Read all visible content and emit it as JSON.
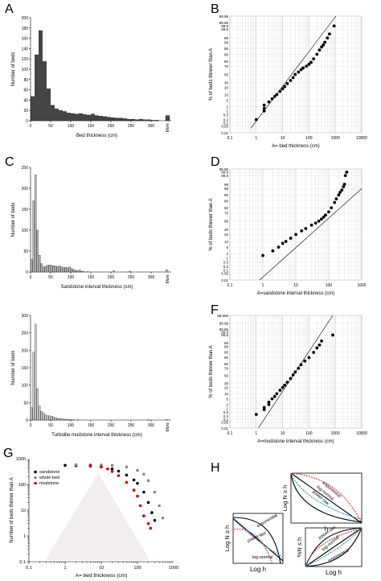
{
  "chart_data": [
    {
      "panel": "A",
      "type": "bar",
      "xlabel": "Bed thickness (cm)",
      "ylabel": "Number of beds",
      "ylim": [
        0,
        200
      ],
      "yticks": [
        0,
        20,
        40,
        60,
        80,
        100,
        120,
        140,
        160,
        180,
        200
      ],
      "xlim": [
        0,
        330
      ],
      "xticks": [
        0,
        50,
        100,
        150,
        200,
        250,
        300
      ],
      "bin_width": 10,
      "more_label": "More",
      "more_value": 10,
      "bar_color": "#444444",
      "values": [
        47,
        128,
        175,
        115,
        62,
        30,
        23,
        20,
        18,
        15,
        14,
        13,
        14,
        12,
        11,
        13,
        10,
        9,
        8,
        7,
        6,
        5,
        5,
        4,
        3,
        3,
        2,
        3,
        2,
        2,
        1,
        1
      ]
    },
    {
      "panel": "B",
      "type": "scatter",
      "xlabel": "A= bed thickness (cm)",
      "ylabel": "% of beds thinner than A",
      "xscale": "log",
      "xlim": [
        0.1,
        10000
      ],
      "xticks": [
        "0.1",
        "1",
        "10",
        "100",
        "1000",
        "10000"
      ],
      "yticks": [
        "0.01",
        "0.05",
        "0.1",
        "0.2",
        "0.5",
        "1",
        "2",
        "5",
        "10",
        "20",
        "30",
        "50",
        "70",
        "80",
        "90",
        "95",
        "98",
        "99",
        "99.8",
        "99.9",
        "99.95",
        "99.99"
      ],
      "fit_line": [
        [
          0.62,
          0.03
        ],
        [
          1050,
          99.99
        ]
      ],
      "points": [
        [
          1,
          0.2
        ],
        [
          2,
          1
        ],
        [
          2,
          1.5
        ],
        [
          2,
          2.5
        ],
        [
          3,
          4
        ],
        [
          4,
          6
        ],
        [
          5,
          8
        ],
        [
          6,
          10
        ],
        [
          8,
          14
        ],
        [
          10,
          18
        ],
        [
          12,
          22
        ],
        [
          15,
          28
        ],
        [
          20,
          35
        ],
        [
          25,
          42
        ],
        [
          30,
          50
        ],
        [
          40,
          56
        ],
        [
          50,
          62
        ],
        [
          60,
          66
        ],
        [
          80,
          70
        ],
        [
          100,
          74
        ],
        [
          120,
          78
        ],
        [
          150,
          84
        ],
        [
          200,
          90
        ],
        [
          250,
          94
        ],
        [
          300,
          96
        ],
        [
          350,
          97
        ],
        [
          400,
          98
        ],
        [
          500,
          99
        ],
        [
          600,
          99.5
        ],
        [
          900,
          99.9
        ]
      ]
    },
    {
      "panel": "C",
      "type": "bar",
      "xlabel": "Sandstone interval thickness (cm)",
      "ylabel": "Number of beds",
      "ylim": [
        0,
        250
      ],
      "yticks": [
        0,
        50,
        100,
        150,
        200,
        250
      ],
      "xlim": [
        0,
        330
      ],
      "xticks": [
        0,
        50,
        100,
        150,
        200,
        250,
        300
      ],
      "bin_width": 5,
      "more_label": "More",
      "more_value": 5,
      "bar_color": "#bdbdbd",
      "values": [
        30,
        170,
        232,
        100,
        40,
        20,
        12,
        14,
        16,
        17,
        16,
        15,
        14,
        13,
        14,
        12,
        10,
        11,
        10,
        12,
        8,
        6,
        4,
        3,
        5,
        2,
        1,
        0,
        1,
        0,
        0,
        0,
        0,
        0,
        0,
        0,
        0,
        0,
        0,
        0,
        0,
        3,
        0,
        0,
        0,
        0,
        0,
        0,
        0,
        2,
        0,
        0,
        0,
        0,
        0,
        0,
        0,
        0,
        0,
        0,
        0,
        0,
        0,
        0,
        0,
        0
      ]
    },
    {
      "panel": "D",
      "type": "scatter",
      "xlabel": "A=sandstone interval thickness (cm)",
      "ylabel": "% of beds thinner than A",
      "xscale": "log",
      "xlim": [
        0.1,
        1000
      ],
      "xticks": [
        "0.1",
        "1",
        "10",
        "100",
        "1000"
      ],
      "yticks": [
        "0.01",
        "0.05",
        "0.1",
        "0.2",
        "0.5",
        "1",
        "2",
        "5",
        "10",
        "20",
        "30",
        "50",
        "70",
        "80",
        "90",
        "95",
        "98",
        "99",
        "99.8",
        "99.9",
        "99.95"
      ],
      "fit_line": [
        [
          0.8,
          0.01
        ],
        [
          1000,
          98
        ]
      ],
      "points": [
        [
          1,
          1.5
        ],
        [
          2,
          3
        ],
        [
          3,
          5
        ],
        [
          4,
          8
        ],
        [
          5,
          10
        ],
        [
          7,
          14
        ],
        [
          10,
          20
        ],
        [
          15,
          27
        ],
        [
          20,
          32
        ],
        [
          30,
          40
        ],
        [
          40,
          45
        ],
        [
          50,
          50
        ],
        [
          60,
          55
        ],
        [
          70,
          60
        ],
        [
          80,
          65
        ],
        [
          100,
          72
        ],
        [
          120,
          80
        ],
        [
          150,
          88
        ],
        [
          170,
          92
        ],
        [
          200,
          95
        ],
        [
          220,
          96.5
        ],
        [
          250,
          97.5
        ],
        [
          280,
          98.5
        ],
        [
          300,
          99
        ],
        [
          320,
          99.8
        ],
        [
          350,
          99.9
        ]
      ]
    },
    {
      "panel": "E",
      "type": "bar",
      "xlabel": "Turbidite mudstone interval thickness (cm)",
      "ylabel": "Number of beds",
      "ylim": [
        0,
        300
      ],
      "yticks": [
        0,
        50,
        100,
        150,
        200,
        250,
        300
      ],
      "xlim": [
        0,
        330
      ],
      "xticks": [
        0,
        50,
        100,
        150,
        200,
        250,
        300
      ],
      "bin_width": 5,
      "more_label": "More",
      "more_value": 2,
      "bar_color": "#d4d4d4",
      "values": [
        35,
        195,
        275,
        90,
        40,
        25,
        20,
        15,
        12,
        12,
        11,
        9,
        6,
        5,
        4,
        3,
        3,
        2,
        2,
        1,
        1,
        1,
        0,
        1,
        0,
        0,
        0,
        0,
        0,
        0,
        0,
        0,
        0,
        0,
        0,
        0,
        0,
        0,
        0,
        0,
        0,
        0,
        0,
        0,
        0,
        0,
        0,
        0,
        0,
        0,
        0,
        0,
        0,
        0,
        0,
        0,
        0,
        0,
        1,
        0,
        0,
        0,
        0,
        0,
        0,
        0
      ]
    },
    {
      "panel": "F",
      "type": "scatter",
      "xlabel": "A=mudstone interval thickness (cm)",
      "ylabel": "% of beds thinner than A",
      "xscale": "log",
      "xlim": [
        0.1,
        10000
      ],
      "xticks": [
        "0.1",
        "1",
        "10",
        "100",
        "1000",
        "10000"
      ],
      "yticks": [
        "0.01",
        "0.05",
        "0.1",
        "0.2",
        "0.5",
        "1",
        "2",
        "5",
        "10",
        "20",
        "30",
        "50",
        "70",
        "80",
        "90",
        "95",
        "98",
        "99",
        "99.8",
        "99.9",
        "99.95",
        "99.99",
        "99.999"
      ],
      "fit_line": [
        [
          1.2,
          0.01
        ],
        [
          800,
          99.999
        ]
      ],
      "points": [
        [
          1,
          0.3
        ],
        [
          2,
          0.8
        ],
        [
          2,
          1.2
        ],
        [
          3,
          2
        ],
        [
          3,
          3
        ],
        [
          4,
          5
        ],
        [
          5,
          7
        ],
        [
          6,
          10
        ],
        [
          8,
          15
        ],
        [
          10,
          20
        ],
        [
          12,
          25
        ],
        [
          15,
          32
        ],
        [
          20,
          42
        ],
        [
          25,
          52
        ],
        [
          30,
          60
        ],
        [
          40,
          70
        ],
        [
          50,
          78
        ],
        [
          70,
          85
        ],
        [
          100,
          90
        ],
        [
          150,
          95
        ],
        [
          200,
          97.5
        ],
        [
          250,
          98.5
        ],
        [
          300,
          99.3
        ],
        [
          800,
          99.8
        ]
      ]
    },
    {
      "panel": "G",
      "type": "scatter",
      "xlabel": "A= bed thickness (cm)",
      "ylabel": "Number of beds thinner than A",
      "xscale": "log",
      "yscale": "log",
      "xlim": [
        0.1,
        1000
      ],
      "ylim": [
        0.1,
        1000
      ],
      "xticks": [
        "0.1",
        "1",
        "10",
        "100",
        "1000"
      ],
      "yticks": [
        "0.1",
        "1",
        "10",
        "100",
        "1000"
      ],
      "legend_position": "top-left",
      "series": [
        {
          "name": "sandstone",
          "color": "#000000",
          "points": [
            [
              1,
              550
            ],
            [
              2,
              540
            ],
            [
              5,
              520
            ],
            [
              10,
              480
            ],
            [
              20,
              400
            ],
            [
              30,
              330
            ],
            [
              50,
              230
            ],
            [
              80,
              150
            ],
            [
              100,
              110
            ],
            [
              150,
              50
            ],
            [
              200,
              20
            ],
            [
              250,
              8
            ],
            [
              300,
              4
            ]
          ]
        },
        {
          "name": "whole bed",
          "color": "#888888",
          "points": [
            [
              2,
              580
            ],
            [
              5,
              575
            ],
            [
              10,
              570
            ],
            [
              20,
              550
            ],
            [
              50,
              480
            ],
            [
              100,
              350
            ],
            [
              150,
              250
            ],
            [
              200,
              140
            ],
            [
              300,
              50
            ],
            [
              400,
              15
            ],
            [
              500,
              5
            ]
          ]
        },
        {
          "name": "mudstone",
          "color": "#cc0000",
          "points": [
            [
              5,
              540
            ],
            [
              10,
              480
            ],
            [
              15,
              400
            ],
            [
              20,
              320
            ],
            [
              30,
              220
            ],
            [
              50,
              120
            ],
            [
              80,
              60
            ],
            [
              100,
              35
            ],
            [
              120,
              15
            ],
            [
              150,
              6
            ],
            [
              200,
              3
            ],
            [
              230,
              2
            ]
          ]
        }
      ]
    },
    {
      "panel": "H",
      "type": "schematic",
      "subplots": [
        {
          "xlabel": "h",
          "ylabel": "Log N ≥ h",
          "labels": [
            "exponential",
            "log-normal",
            "power-law"
          ]
        },
        {
          "xlabel": "Log h",
          "ylabel": "Log N ≥ h",
          "labels": [
            "exponential",
            "power-law",
            "log-normal"
          ]
        },
        {
          "xlabel": "Log h",
          "ylabel": "%N ≤ h",
          "labels": [
            "power-law",
            "log-normal",
            "exponential"
          ]
        }
      ]
    }
  ]
}
